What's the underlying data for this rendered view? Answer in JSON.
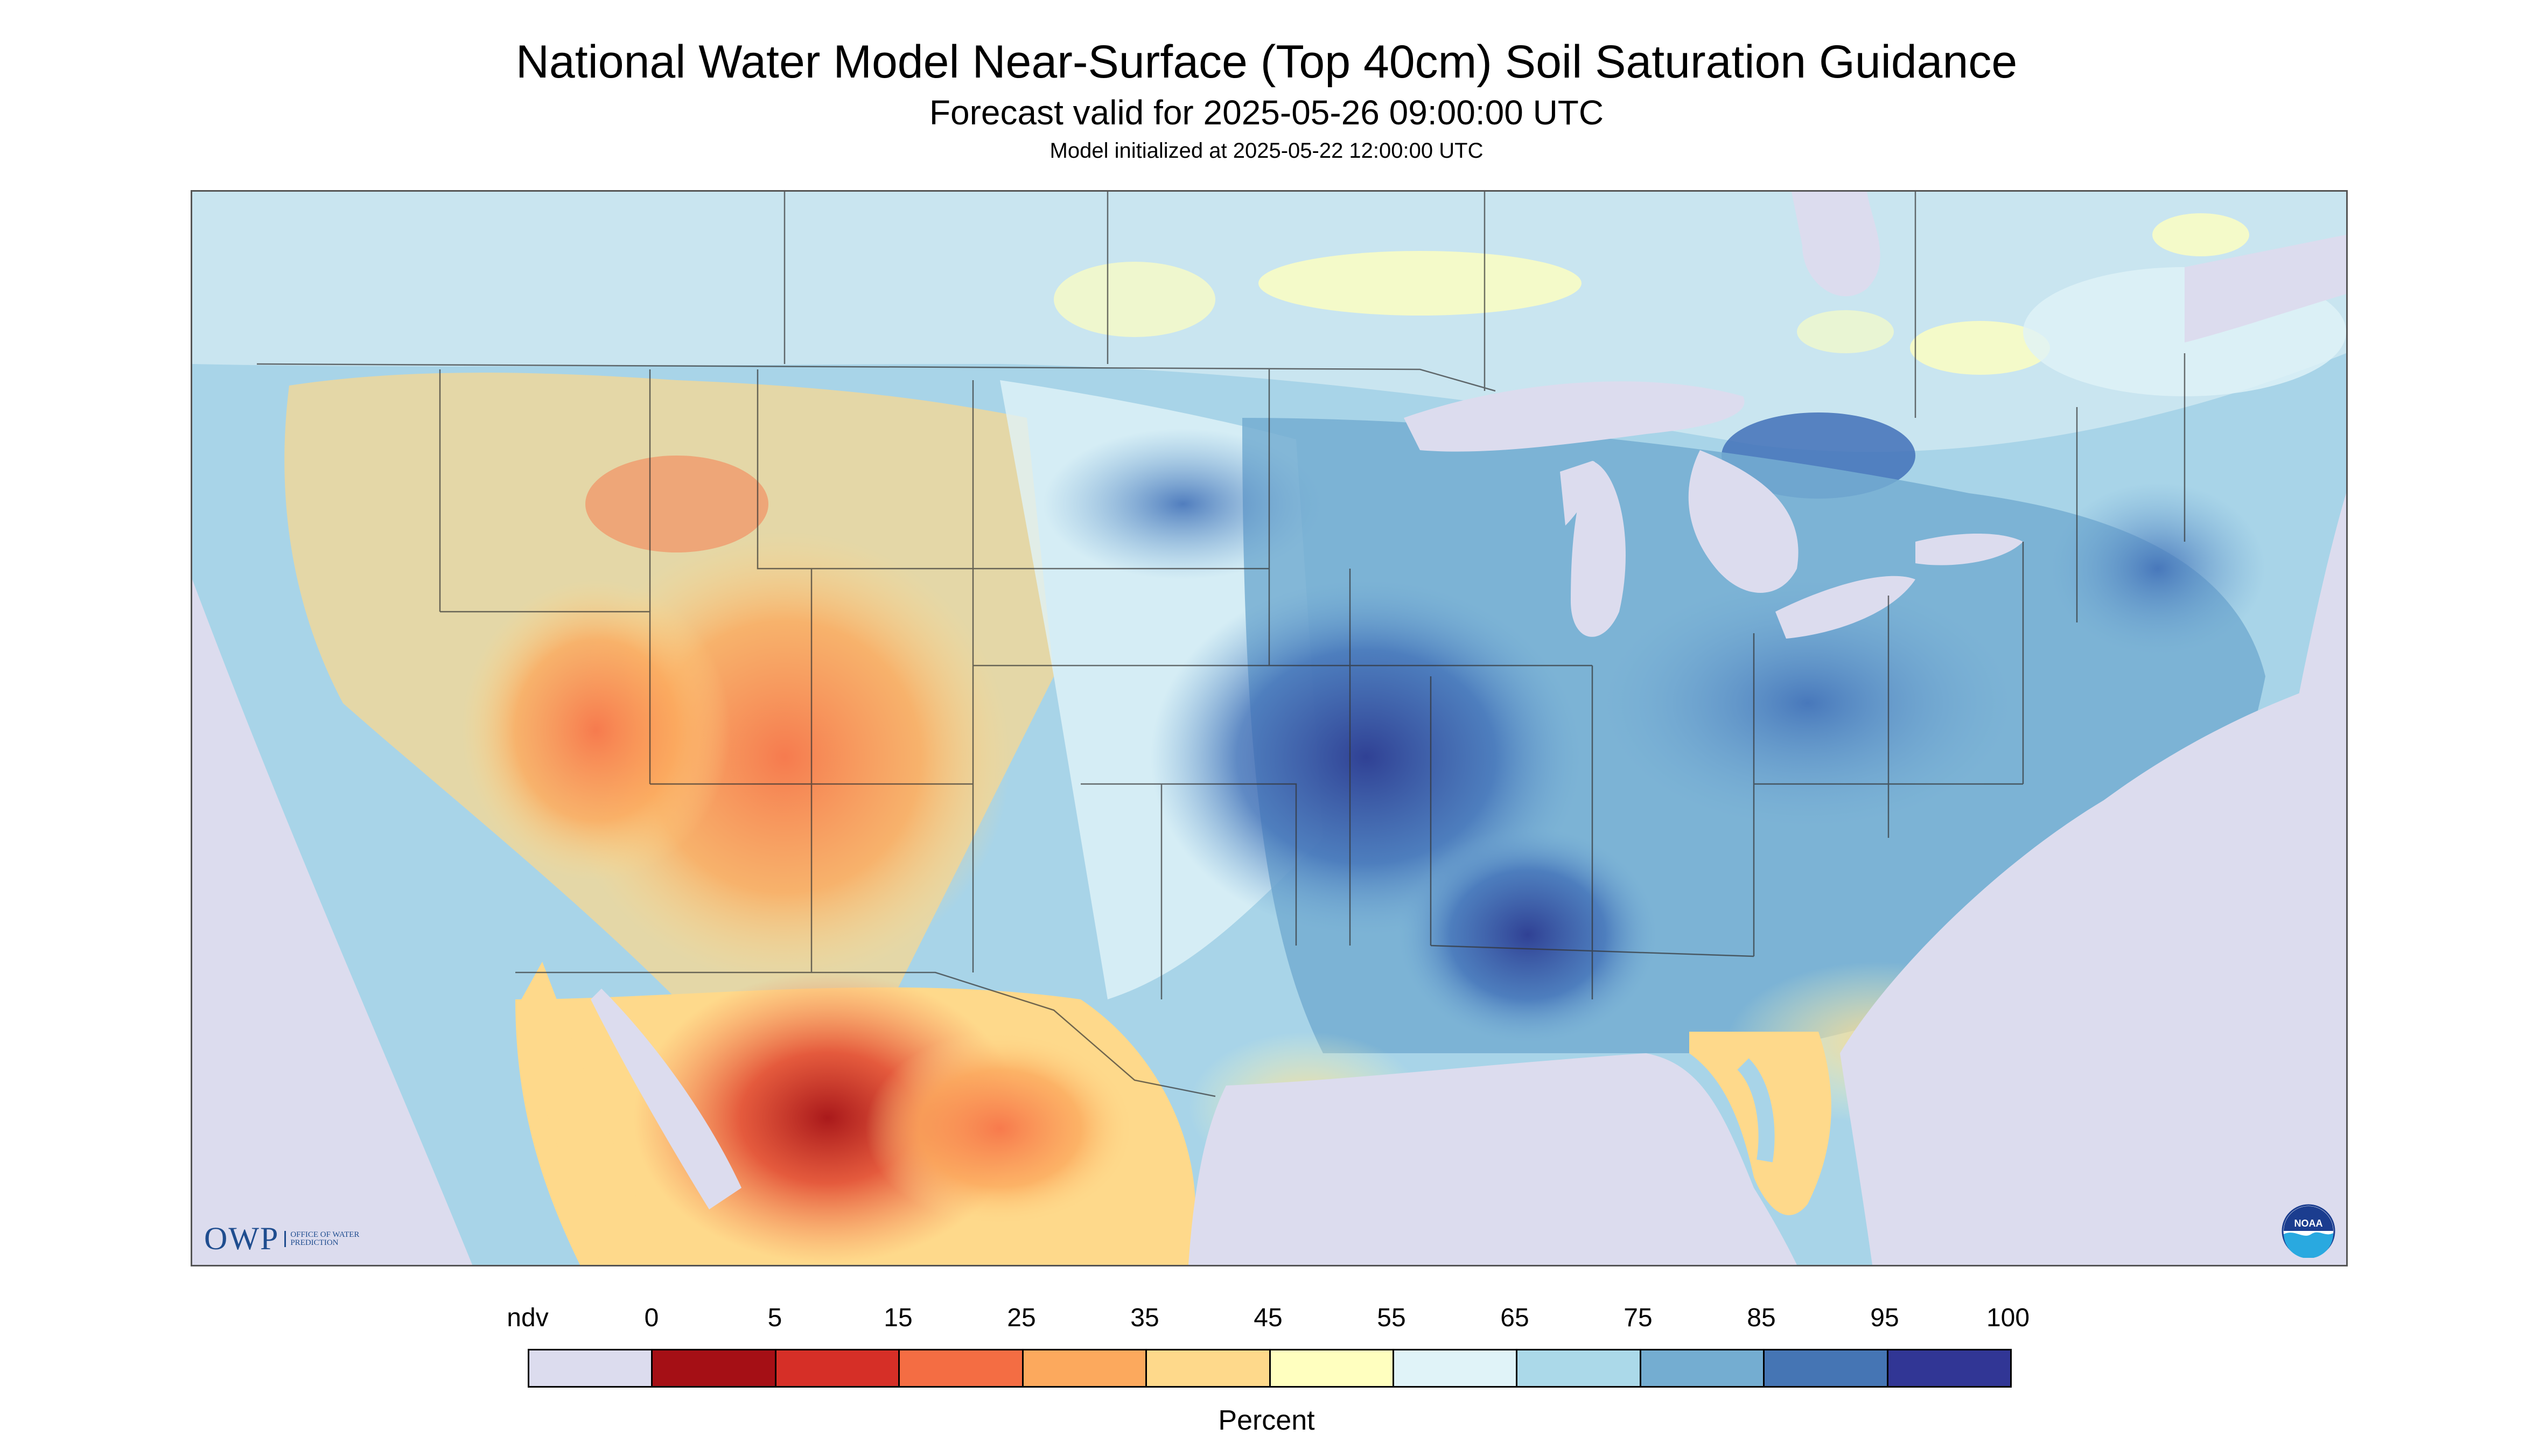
{
  "header": {
    "title": "National Water Model Near-Surface (Top 40cm) Soil Saturation Guidance",
    "subtitle": "Forecast valid for 2025-05-26 09:00:00 UTC",
    "model_init": "Model initialized at 2025-05-22 12:00:00 UTC"
  },
  "map": {
    "region": "Continental United States",
    "colors": {
      "ocean_ndv": "#dcdcee",
      "very_dry": "#a50f15",
      "dry": "#e0442f",
      "orange": "#f7764a",
      "light_orange": "#fca95d",
      "tan": "#fed98b",
      "yellow": "#ffffbf",
      "light_blue": "#e0f3f8",
      "sky": "#a8d4e8",
      "blue": "#6fa5d2",
      "dark_blue": "#4271b8",
      "navy": "#2c3b91"
    }
  },
  "logos": {
    "owp_mark": "OWP",
    "owp_sub": "OFFICE OF WATER PREDICTION",
    "noaa_text": "NOAA",
    "noaa_icon": "noaa-logo-icon"
  },
  "legend": {
    "labels": [
      "ndv",
      "0",
      "5",
      "15",
      "25",
      "35",
      "45",
      "55",
      "65",
      "75",
      "85",
      "95",
      "100"
    ],
    "swatches": [
      "#dcdcee",
      "#a50f15",
      "#d62f27",
      "#f46d43",
      "#fca95d",
      "#fed98b",
      "#ffffbf",
      "#e0f3f8",
      "#abd9e9",
      "#74add1",
      "#4575b4",
      "#313695"
    ],
    "unit": "Percent"
  }
}
